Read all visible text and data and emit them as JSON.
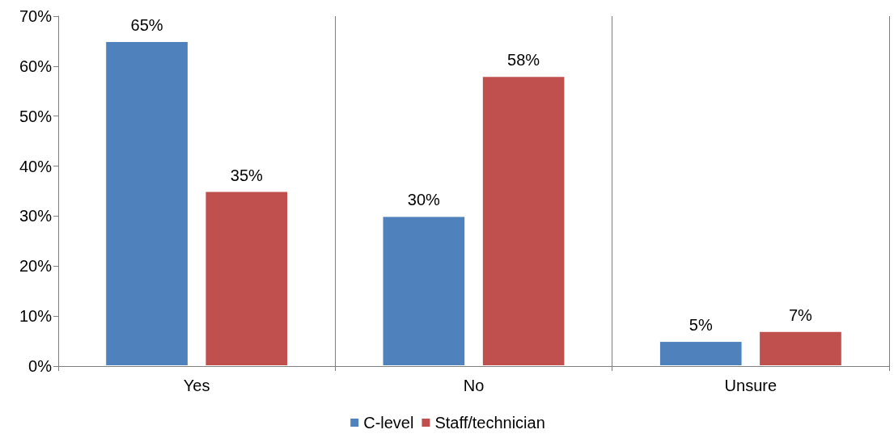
{
  "chart_data": {
    "type": "bar",
    "categories": [
      "Yes",
      "No",
      "Unsure"
    ],
    "series": [
      {
        "name": "C-level",
        "color": "#4f81bd",
        "values": [
          65,
          30,
          5
        ],
        "value_labels": [
          "65%",
          "30%",
          "5%"
        ]
      },
      {
        "name": "Staff/technician",
        "color": "#c0504d",
        "values": [
          35,
          58,
          7
        ],
        "value_labels": [
          "35%",
          "58%",
          "7%"
        ]
      }
    ],
    "ylim": [
      0,
      70
    ],
    "yticks": [
      {
        "value": 0,
        "label": "0%"
      },
      {
        "value": 10,
        "label": "10%"
      },
      {
        "value": 20,
        "label": "20%"
      },
      {
        "value": 30,
        "label": "30%"
      },
      {
        "value": 40,
        "label": "40%"
      },
      {
        "value": 50,
        "label": "50%"
      },
      {
        "value": 60,
        "label": "60%"
      },
      {
        "value": 70,
        "label": "70%"
      }
    ],
    "grid": "x",
    "legend": "bottom"
  }
}
